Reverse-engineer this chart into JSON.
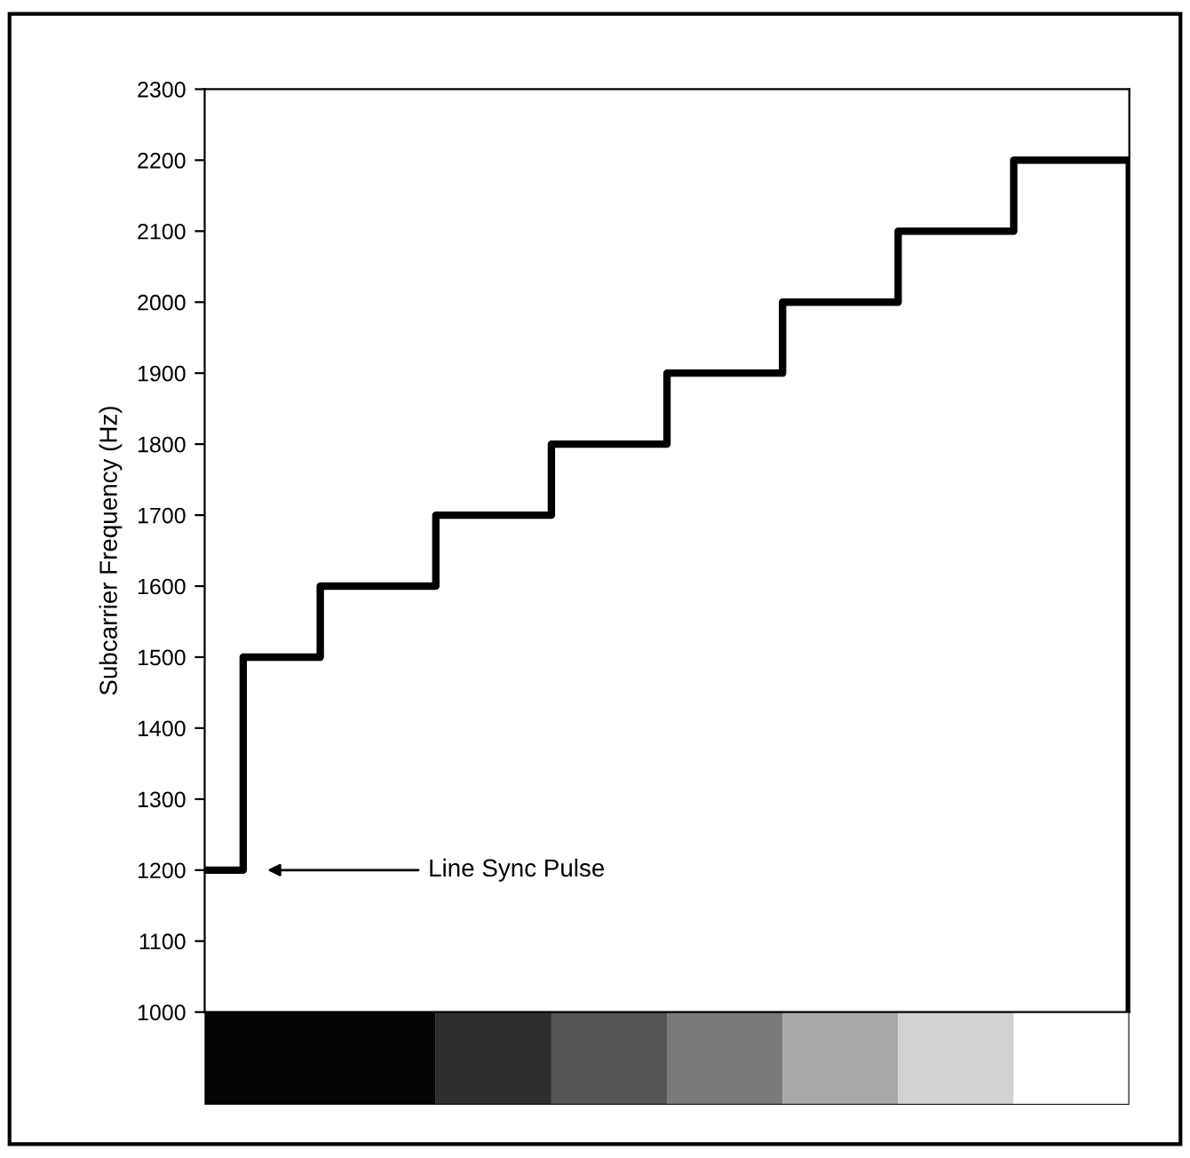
{
  "chart_data": {
    "type": "step",
    "ylabel": "Subcarrier Frequency (Hz)",
    "categories": [
      null,
      null,
      null,
      null,
      null,
      null,
      null,
      null,
      null,
      null,
      null,
      null,
      null,
      null,
      null,
      null,
      null,
      null,
      null,
      null,
      null,
      null,
      null,
      null,
      null
    ],
    "series": [
      {
        "color": "#000000",
        "values": [
          1200,
          1500,
          1500,
          1600,
          1600,
          1600,
          1700,
          1700,
          1700,
          1800,
          1800,
          1800,
          1900,
          1900,
          1900,
          2000,
          2000,
          2000,
          2100,
          2100,
          2100,
          2200,
          2200,
          2200,
          1000
        ]
      }
    ],
    "ylim": [
      1000,
      2300
    ],
    "yticks": [
      1000,
      1100,
      1200,
      1300,
      1400,
      1500,
      1600,
      1700,
      1800,
      1900,
      2000,
      2100,
      2200,
      2300
    ],
    "annotations": [
      "Line Sync Pulse"
    ],
    "tick_labels": "y"
  }
}
